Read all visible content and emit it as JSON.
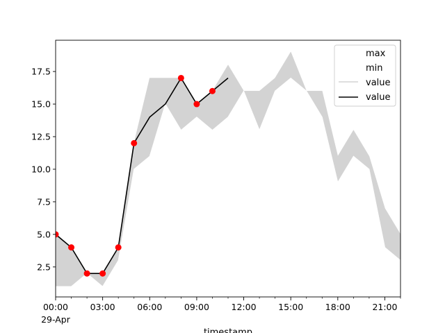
{
  "chart_data": {
    "type": "line",
    "xlabel": "timestamp",
    "date_label": "29-Apr",
    "x_hours": [
      0,
      1,
      2,
      3,
      4,
      5,
      6,
      7,
      8,
      9,
      10,
      11,
      12,
      13,
      14,
      15,
      16,
      17,
      18,
      19,
      20,
      21,
      22
    ],
    "x_ticks": [
      {
        "hour": 0,
        "label": "00:00"
      },
      {
        "hour": 3,
        "label": "03:00"
      },
      {
        "hour": 6,
        "label": "06:00"
      },
      {
        "hour": 9,
        "label": "09:00"
      },
      {
        "hour": 12,
        "label": "12:00"
      },
      {
        "hour": 15,
        "label": "15:00"
      },
      {
        "hour": 18,
        "label": "18:00"
      },
      {
        "hour": 21,
        "label": "21:00"
      }
    ],
    "xlim": [
      0,
      22
    ],
    "ylim": [
      0.2,
      19.9
    ],
    "y_ticks": [
      2.5,
      5.0,
      7.5,
      10.0,
      12.5,
      15.0,
      17.5
    ],
    "y_tick_labels": [
      "2.5",
      "5.0",
      "7.5",
      "10.0",
      "12.5",
      "15.0",
      "17.5"
    ],
    "band": {
      "max": [
        5,
        4,
        2,
        2,
        4,
        12,
        17,
        17,
        17,
        15,
        16,
        18,
        16,
        16,
        17,
        19,
        16,
        16,
        11,
        13,
        11,
        7,
        5
      ],
      "min": [
        1,
        1,
        2,
        1,
        3,
        10,
        11,
        15,
        13,
        14,
        13,
        14,
        16,
        13,
        16,
        17,
        16,
        14,
        9,
        11,
        10,
        4,
        3
      ]
    },
    "series": [
      {
        "name": "value",
        "hours": [
          0,
          1,
          2,
          3,
          4,
          5,
          6,
          7,
          8,
          9,
          10,
          11
        ],
        "values": [
          5,
          4,
          2,
          2,
          4,
          12,
          14,
          15,
          17,
          15,
          16,
          17
        ]
      }
    ],
    "markers": {
      "hours": [
        0,
        1,
        2,
        3,
        4,
        5,
        8,
        9,
        10
      ],
      "values": [
        5,
        4,
        2,
        2,
        4,
        12,
        17,
        15,
        16
      ]
    },
    "legend": {
      "placement": "top-right",
      "entries": [
        {
          "label": "max",
          "style": "none"
        },
        {
          "label": "min",
          "style": "none"
        },
        {
          "label": "value",
          "style": "light-line"
        },
        {
          "label": "value",
          "style": "dark-line"
        }
      ]
    },
    "colors": {
      "band": "#d3d3d3",
      "line": "#000000",
      "marker": "#ff0000",
      "light_line": "#d3d3d3"
    }
  }
}
